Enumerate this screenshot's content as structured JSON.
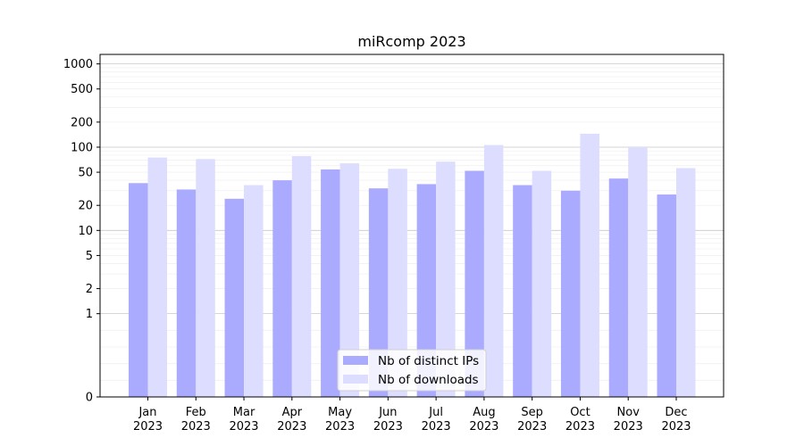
{
  "chart_data": {
    "type": "bar",
    "title": "miRcomp 2023",
    "xlabel": "",
    "ylabel": "",
    "yscale": "symlog",
    "ylim": [
      0,
      1300
    ],
    "yticks": [
      0,
      1,
      2,
      5,
      10,
      20,
      50,
      100,
      200,
      500,
      1000
    ],
    "grid": "y",
    "legend_position": "bottom-center",
    "categories": [
      "Jan\n2023",
      "Feb\n2023",
      "Mar\n2023",
      "Apr\n2023",
      "May\n2023",
      "Jun\n2023",
      "Jul\n2023",
      "Aug\n2023",
      "Sep\n2023",
      "Oct\n2023",
      "Nov\n2023",
      "Dec\n2023"
    ],
    "series": [
      {
        "name": "Nb of distinct IPs",
        "color": "#aaaaff",
        "values": [
          37,
          31,
          24,
          40,
          54,
          32,
          36,
          52,
          35,
          30,
          42,
          27
        ]
      },
      {
        "name": "Nb of downloads",
        "color": "#ddddff",
        "values": [
          75,
          72,
          35,
          78,
          64,
          55,
          67,
          106,
          52,
          145,
          100,
          56
        ]
      }
    ]
  }
}
